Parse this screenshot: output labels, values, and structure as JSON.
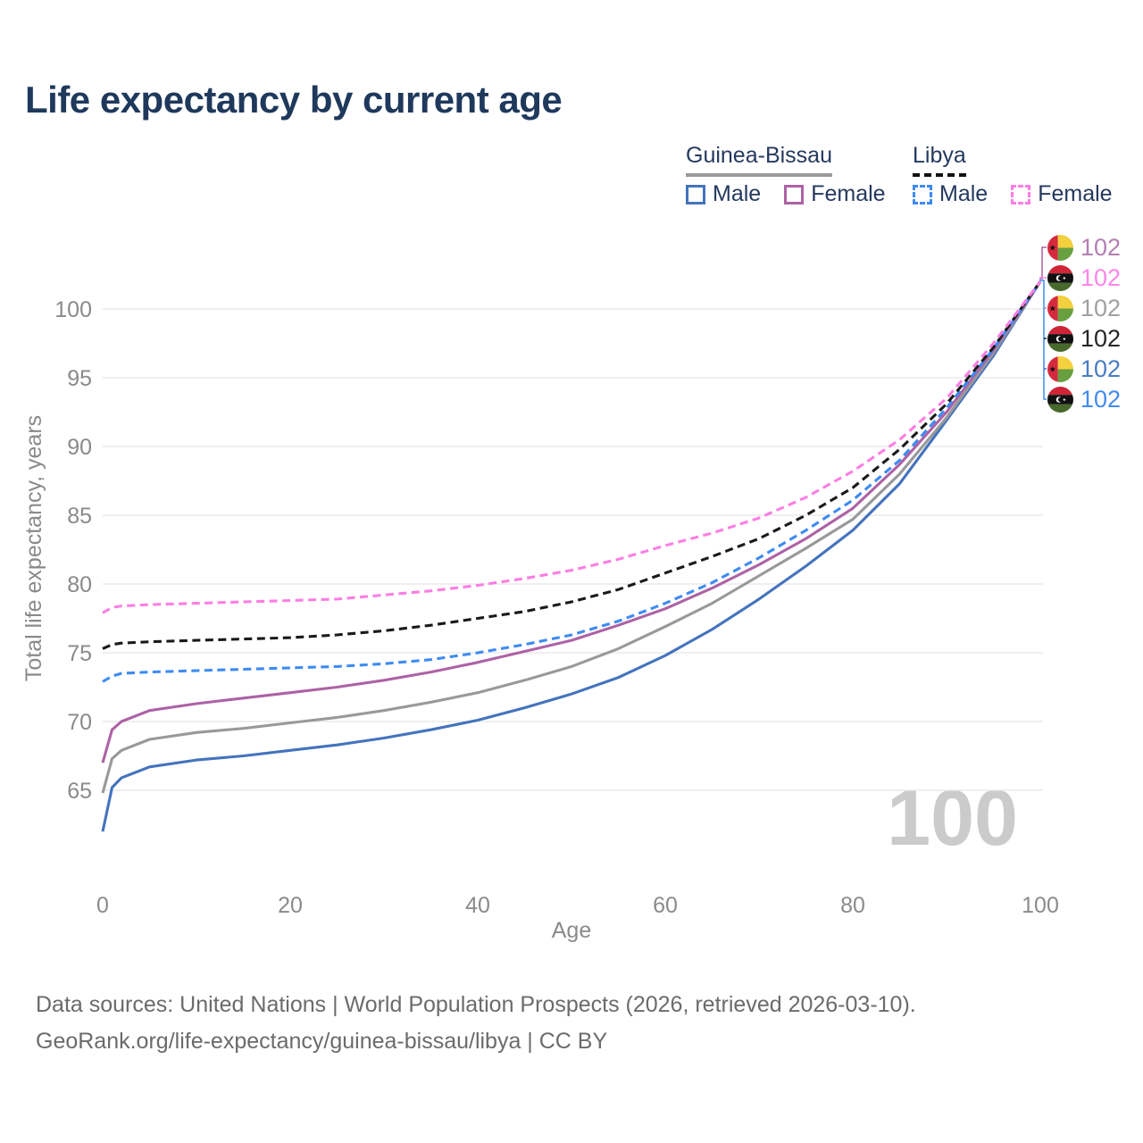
{
  "title": "Life expectancy by current age",
  "legend": {
    "groups": [
      {
        "name": "Guinea-Bissau",
        "underline_style": "solid",
        "underline_color": "#9a9a9a",
        "items": [
          {
            "label": "Male",
            "color": "#4473bd",
            "dashed": false
          },
          {
            "label": "Female",
            "color": "#ad62a5",
            "dashed": false
          }
        ]
      },
      {
        "name": "Libya",
        "underline_style": "dashed",
        "underline_color": "#111111",
        "items": [
          {
            "label": "Male",
            "color": "#3d8bf2",
            "dashed": true
          },
          {
            "label": "Female",
            "color": "#fc7ee3",
            "dashed": true
          }
        ]
      }
    ]
  },
  "watermark": "100",
  "end_labels": [
    {
      "flag": "gw",
      "value": "102",
      "color": "#b37fb2"
    },
    {
      "flag": "ly",
      "value": "102",
      "color": "#fd86e9"
    },
    {
      "flag": "gw",
      "value": "102",
      "color": "#a0a0a0"
    },
    {
      "flag": "ly",
      "value": "102",
      "color": "#262626"
    },
    {
      "flag": "gw",
      "value": "102",
      "color": "#4a7dc0"
    },
    {
      "flag": "ly",
      "value": "102",
      "color": "#418bf0"
    }
  ],
  "footer": {
    "line1": "Data sources: United Nations | World Population Prospects (2026, retrieved 2026-03-10).",
    "line2": "GeoRank.org/life-expectancy/guinea-bissau/libya | CC BY"
  },
  "chart_data": {
    "type": "line",
    "title": "Life expectancy by current age",
    "xlabel": "Age",
    "ylabel": "Total life expectancy, years",
    "xlim": [
      0,
      100
    ],
    "ylim": [
      61,
      103
    ],
    "xticks": [
      0,
      20,
      40,
      60,
      80,
      100
    ],
    "yticks": [
      65,
      70,
      75,
      80,
      85,
      90,
      95,
      100
    ],
    "grid": true,
    "legend_position": "top-right",
    "x": [
      0,
      1,
      2,
      5,
      10,
      15,
      20,
      25,
      30,
      35,
      40,
      45,
      50,
      55,
      60,
      65,
      70,
      75,
      80,
      85,
      90,
      95,
      100
    ],
    "series": [
      {
        "id": "gw-male",
        "name": "Guinea-Bissau Male",
        "color": "#4473bd",
        "dash": false,
        "values": [
          62.0,
          65.2,
          65.9,
          66.7,
          67.2,
          67.5,
          67.9,
          68.3,
          68.8,
          69.4,
          70.1,
          71.0,
          72.0,
          73.2,
          74.8,
          76.7,
          78.9,
          81.3,
          83.9,
          87.3,
          91.9,
          96.6,
          102
        ]
      },
      {
        "id": "gw-total",
        "name": "Guinea-Bissau Both sexes",
        "color": "#999999",
        "dash": false,
        "values": [
          64.8,
          67.3,
          67.9,
          68.7,
          69.2,
          69.5,
          69.9,
          70.3,
          70.8,
          71.4,
          72.1,
          73.0,
          74.0,
          75.3,
          76.9,
          78.6,
          80.6,
          82.6,
          84.7,
          88.0,
          92.1,
          96.8,
          102
        ]
      },
      {
        "id": "gw-female",
        "name": "Guinea-Bissau Female",
        "color": "#ad62a5",
        "dash": false,
        "values": [
          67.0,
          69.4,
          70.0,
          70.8,
          71.3,
          71.7,
          72.1,
          72.5,
          73.0,
          73.6,
          74.3,
          75.1,
          75.9,
          77.0,
          78.2,
          79.7,
          81.4,
          83.3,
          85.5,
          88.7,
          92.5,
          97.0,
          102
        ]
      },
      {
        "id": "ly-male",
        "name": "Libya Male",
        "color": "#3d8bf2",
        "dash": true,
        "values": [
          72.9,
          73.3,
          73.5,
          73.6,
          73.7,
          73.8,
          73.9,
          74.0,
          74.2,
          74.5,
          75.0,
          75.6,
          76.3,
          77.3,
          78.6,
          80.1,
          81.9,
          83.9,
          86.1,
          89.0,
          92.8,
          97.1,
          102
        ]
      },
      {
        "id": "ly-total",
        "name": "Libya Both sexes",
        "color": "#1a1a1a",
        "dash": true,
        "values": [
          75.3,
          75.6,
          75.7,
          75.8,
          75.9,
          76.0,
          76.1,
          76.3,
          76.6,
          77.0,
          77.5,
          78.0,
          78.7,
          79.6,
          80.8,
          82.0,
          83.3,
          85.0,
          87.0,
          89.8,
          93.1,
          97.2,
          102
        ]
      },
      {
        "id": "ly-female",
        "name": "Libya Female",
        "color": "#fc7ee3",
        "dash": true,
        "values": [
          77.9,
          78.3,
          78.4,
          78.5,
          78.6,
          78.7,
          78.8,
          78.9,
          79.2,
          79.5,
          79.9,
          80.4,
          81.0,
          81.8,
          82.8,
          83.7,
          84.8,
          86.3,
          88.2,
          90.5,
          93.5,
          97.5,
          102
        ]
      }
    ]
  }
}
